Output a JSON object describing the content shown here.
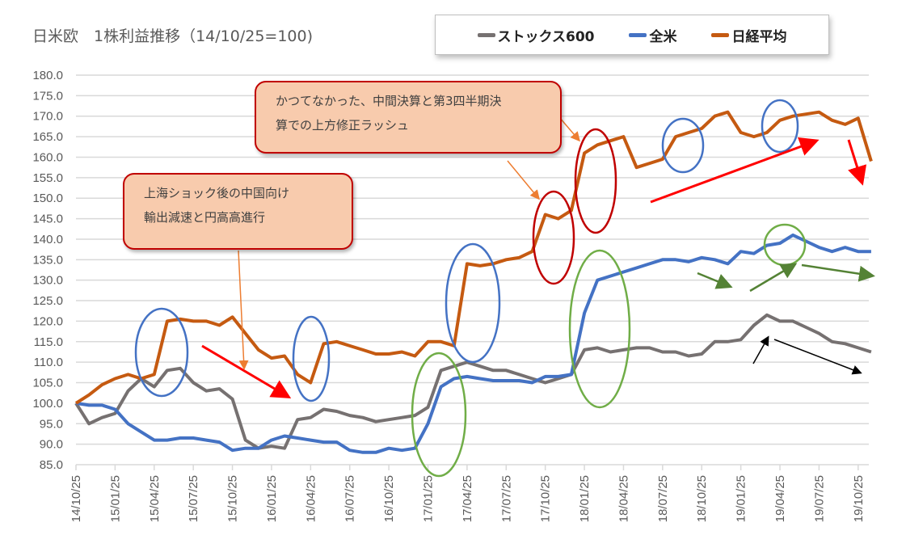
{
  "chart_data": {
    "type": "line",
    "title": "日米欧　1株利益推移（14/10/25=100)",
    "xlabel": "",
    "ylabel": "",
    "ylim": [
      85,
      180
    ],
    "y_ticks": [
      "85.0",
      "90.0",
      "95.0",
      "100.0",
      "105.0",
      "110.0",
      "115.0",
      "120.0",
      "125.0",
      "130.0",
      "135.0",
      "140.0",
      "145.0",
      "150.0",
      "155.0",
      "160.0",
      "165.0",
      "170.0",
      "175.0",
      "180.0"
    ],
    "x_ticks": [
      "14/10/25",
      "15/01/25",
      "15/04/25",
      "15/07/25",
      "15/10/25",
      "16/01/25",
      "16/04/25",
      "16/07/25",
      "16/10/25",
      "17/01/25",
      "17/04/25",
      "17/07/25",
      "17/10/25",
      "18/01/25",
      "18/04/25",
      "18/07/25",
      "18/10/25",
      "19/01/25",
      "19/04/25",
      "19/07/25",
      "19/10/25"
    ],
    "x_unit": "months since 14/10/25",
    "legend_position": "top-right",
    "grid": true,
    "series": [
      {
        "name": "ストックス600",
        "color": "#767171",
        "values": [
          100,
          95,
          96.5,
          97.5,
          103,
          106,
          104,
          108,
          108.5,
          105,
          103,
          103.5,
          101,
          91,
          89,
          89.5,
          89,
          96,
          96.5,
          98.5,
          98,
          97,
          96.5,
          95.5,
          96,
          96.5,
          97,
          99,
          108,
          109,
          110,
          109,
          108,
          108,
          107,
          106,
          105,
          106,
          107,
          113,
          113.5,
          112.5,
          113,
          113.5,
          113.5,
          112.5,
          112.5,
          111.5,
          112,
          115,
          115,
          115.5,
          119,
          121.5,
          120,
          120,
          118.5,
          117,
          115,
          114.5,
          113.5,
          112.5
        ]
      },
      {
        "name": "全米",
        "color": "#4472c4",
        "values": [
          100,
          99.5,
          99.5,
          98.5,
          95,
          93,
          91,
          91,
          91.5,
          91.5,
          91,
          90.5,
          88.5,
          89,
          89,
          91,
          92,
          91.5,
          91,
          90.5,
          90.5,
          88.5,
          88,
          88,
          89,
          88.5,
          89,
          95,
          104,
          106,
          106.5,
          106,
          105.5,
          105.5,
          105.5,
          105,
          106.5,
          106.5,
          107,
          122,
          130,
          131,
          132,
          133,
          134,
          135,
          135,
          134.5,
          135.5,
          135,
          134,
          137,
          136.5,
          138.5,
          139,
          141,
          139.5,
          138,
          137,
          138,
          137,
          137
        ]
      },
      {
        "name": "日経平均",
        "color": "#c55a11",
        "values": [
          100,
          102,
          104.5,
          106,
          107,
          106,
          107,
          120,
          120.5,
          120,
          120,
          119,
          121,
          117,
          113,
          111,
          111.5,
          107,
          105,
          114.5,
          115,
          114,
          113,
          112,
          112,
          112.5,
          111.5,
          115,
          115,
          114,
          134,
          133.5,
          134,
          135,
          135.5,
          137,
          146,
          145,
          147,
          161,
          163,
          164,
          165,
          157.5,
          158.5,
          159.5,
          165,
          166,
          167,
          170,
          171,
          166,
          165,
          166,
          169,
          170,
          170.5,
          171,
          169,
          168,
          169.5,
          159
        ]
      }
    ],
    "annotations": [
      {
        "text_lines": [
          "上海ショック後の中国向け",
          "輸出減速と円高高進行"
        ]
      },
      {
        "text_lines": [
          "かつてなかった、中間決算と第3四半期決",
          "算での上方修正ラッシュ"
        ]
      }
    ]
  },
  "colors": {
    "grid": "#d9d9d9",
    "axis_text": "#595959"
  }
}
